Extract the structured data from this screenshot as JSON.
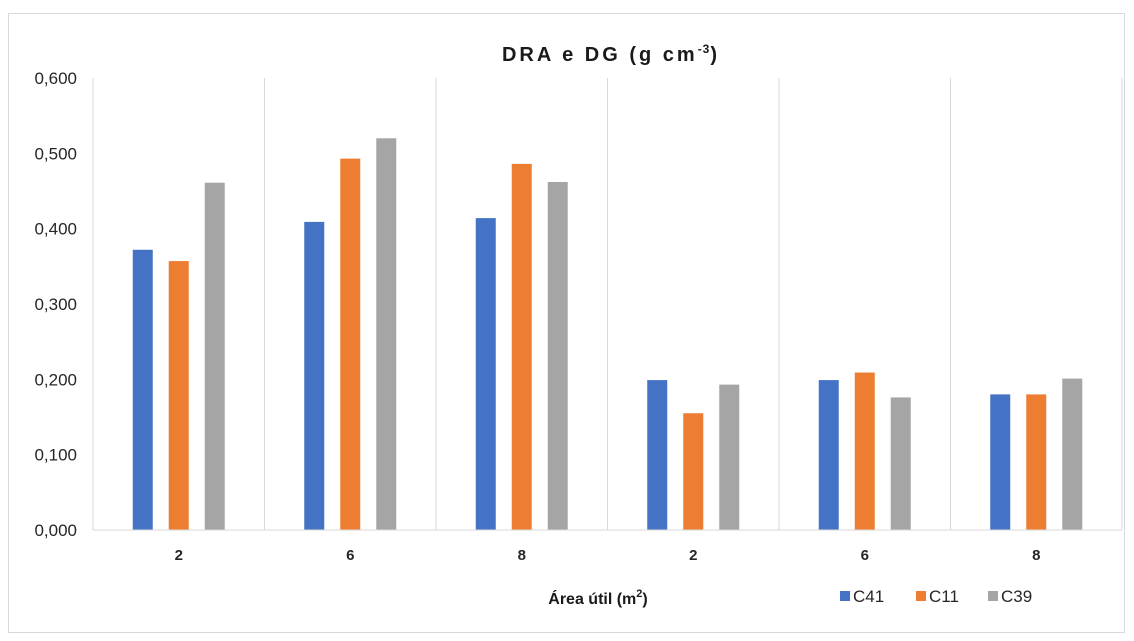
{
  "chart_data": {
    "type": "bar",
    "title": "DRA e DG (g cm",
    "title_sup": "-3",
    "title_end": ")",
    "xlabel": "Área útil (m",
    "xlabel_sup": "2",
    "xlabel_end": ")",
    "ylabel": "",
    "ylim": [
      0,
      0.6
    ],
    "yticks": [
      "0,000",
      "0,100",
      "0,200",
      "0,300",
      "0,400",
      "0,500",
      "0,600"
    ],
    "categories": [
      "2",
      "6",
      "8",
      "2",
      "6",
      "8"
    ],
    "series": [
      {
        "name": "C41",
        "color": "#4472c4",
        "values": [
          0.372,
          0.409,
          0.414,
          0.199,
          0.199,
          0.18
        ]
      },
      {
        "name": "C11",
        "color": "#ed7d31",
        "values": [
          0.357,
          0.493,
          0.486,
          0.155,
          0.209,
          0.18
        ]
      },
      {
        "name": "C39",
        "color": "#a5a5a5",
        "values": [
          0.461,
          0.52,
          0.462,
          0.193,
          0.176,
          0.201
        ]
      }
    ],
    "grid": "vertical category separators",
    "legend_position": "bottom-right"
  }
}
